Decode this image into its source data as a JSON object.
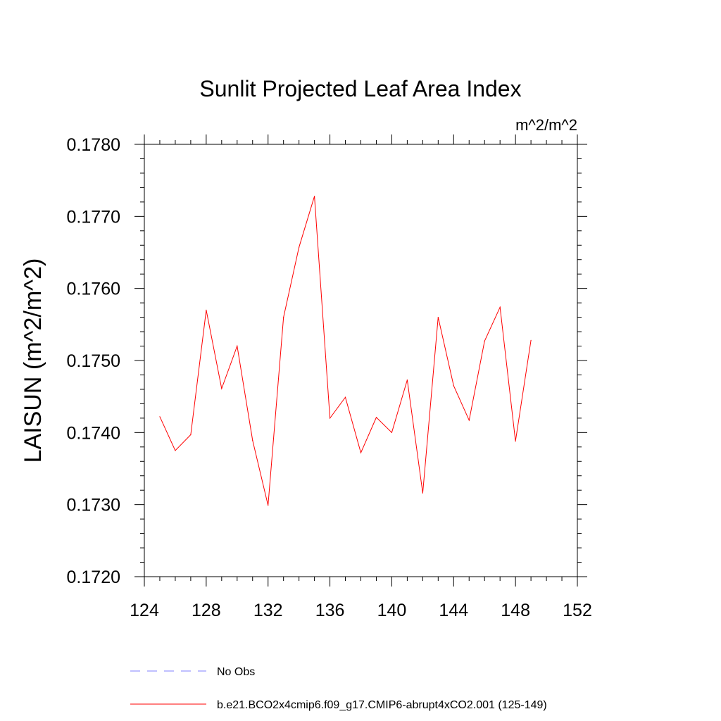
{
  "chart_data": {
    "type": "line",
    "title": "Sunlit Projected Leaf Area Index",
    "units": "m^2/m^2",
    "xlabel": "",
    "ylabel": "LAISUN  (m^2/m^2)",
    "xlim": [
      124,
      152
    ],
    "ylim": [
      0.172,
      0.178
    ],
    "xticks": [
      "124",
      "128",
      "132",
      "136",
      "140",
      "144",
      "148",
      "152"
    ],
    "yticks": [
      "0.1720",
      "0.1730",
      "0.1740",
      "0.1750",
      "0.1760",
      "0.1770",
      "0.1780"
    ],
    "series": [
      {
        "name": "b.e21.BCO2x4cmip6.f09_g17.CMIP6-abrupt4xCO2.001 (125-149)",
        "color": "#ff0000",
        "x": [
          125,
          126,
          127,
          128,
          129,
          130,
          131,
          132,
          133,
          134,
          135,
          136,
          137,
          138,
          139,
          140,
          141,
          142,
          143,
          144,
          145,
          146,
          147,
          148,
          149
        ],
        "y": [
          0.17422,
          0.17375,
          0.17397,
          0.1757,
          0.17461,
          0.1752,
          0.17389,
          0.17299,
          0.1756,
          0.17657,
          0.17728,
          0.1742,
          0.17449,
          0.17372,
          0.17421,
          0.174,
          0.17473,
          0.17316,
          0.1756,
          0.17465,
          0.17417,
          0.17527,
          0.17574,
          0.17388,
          0.17528
        ]
      }
    ],
    "legend": [
      {
        "label": "No Obs",
        "style": "dashed",
        "color": "#8080ff"
      },
      {
        "label": "b.e21.BCO2x4cmip6.f09_g17.CMIP6-abrupt4xCO2.001 (125-149)",
        "style": "solid",
        "color": "#ff0000"
      }
    ]
  }
}
